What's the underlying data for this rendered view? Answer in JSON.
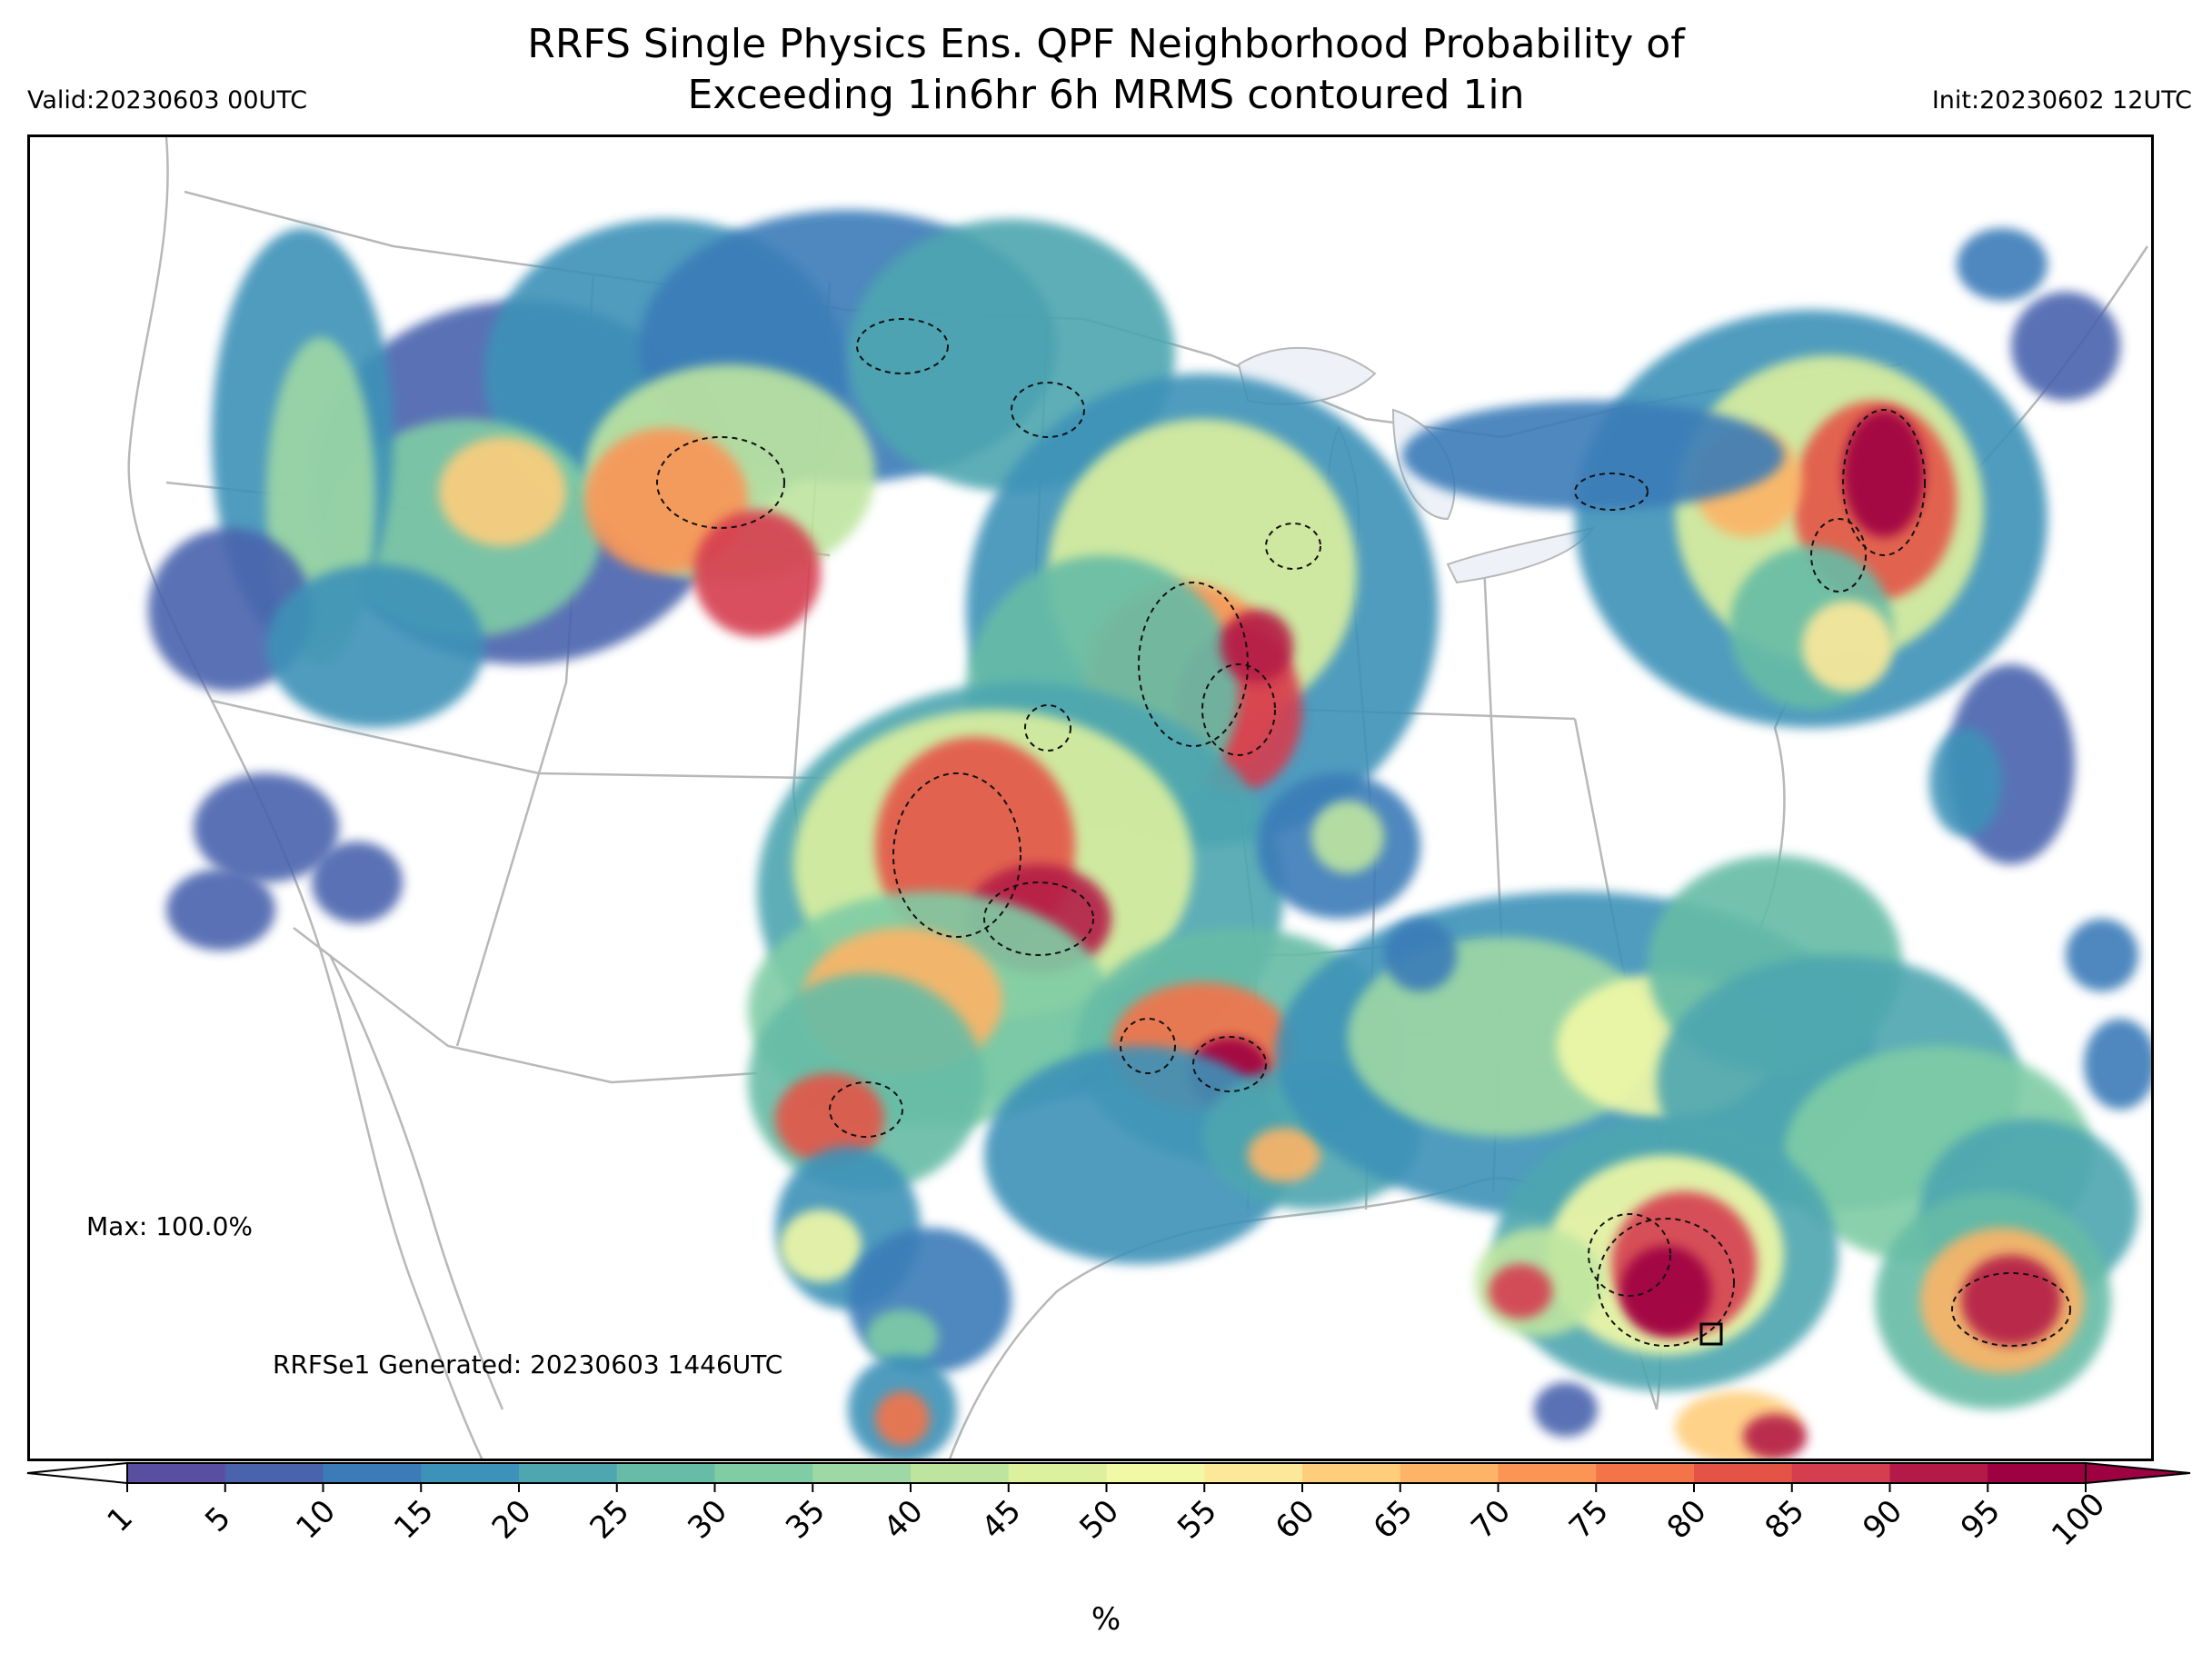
{
  "title": {
    "line1": "RRFS Single Physics Ens. QPF Neighborhood Probability of",
    "line2": "Exceeding 1in6hr 6h MRMS contoured 1in"
  },
  "valid_label": "Valid:20230603 00UTC",
  "init_label": "Init:20230602 12UTC",
  "max_label": "Max: 100.0%",
  "generated_label": "RRFSe1 Generated: 20230603 1446UTC",
  "colorbar": {
    "units": "%",
    "ticks": [
      "1",
      "5",
      "10",
      "15",
      "20",
      "25",
      "30",
      "35",
      "40",
      "45",
      "50",
      "55",
      "60",
      "65",
      "70",
      "75",
      "80",
      "85",
      "90",
      "95",
      "100"
    ],
    "colors": [
      "#5a4ea2",
      "#4963ad",
      "#3b7bb8",
      "#3c92b8",
      "#4ea6b0",
      "#66bca6",
      "#7fcca5",
      "#9ed8a4",
      "#bee5a0",
      "#dcf09e",
      "#f2f9a6",
      "#fde89a",
      "#fece7c",
      "#fdb466",
      "#fa9556",
      "#f47348",
      "#e45446",
      "#d53e4f",
      "#b41a47",
      "#9e0142"
    ],
    "extend_under_color": "#ffffff",
    "extend_over_color": "#9e0142"
  },
  "map": {
    "type": "probability-fill-map",
    "region": "CONUS",
    "field": "neighborhood probability (%)",
    "contour_label": "MRMS 1in (dashed black)",
    "boundary_color": "#b0b0b0",
    "lake_color": "#eef2f8"
  }
}
